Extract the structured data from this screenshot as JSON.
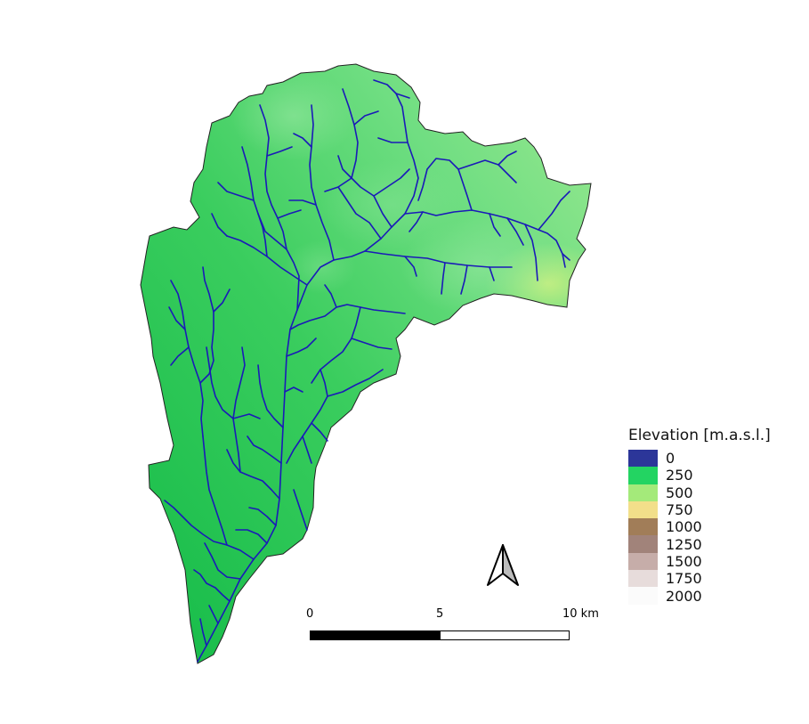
{
  "legend": {
    "title": "Elevation [m.a.s.l.]",
    "items": [
      {
        "label": "0",
        "color": "#2c3699"
      },
      {
        "label": "250",
        "color": "#23d462"
      },
      {
        "label": "500",
        "color": "#a4ea7a"
      },
      {
        "label": "750",
        "color": "#f2df8a"
      },
      {
        "label": "1000",
        "color": "#a17d58"
      },
      {
        "label": "1250",
        "color": "#a1837a"
      },
      {
        "label": "1500",
        "color": "#c6ada9"
      },
      {
        "label": "1750",
        "color": "#e7dcdb"
      },
      {
        "label": "2000",
        "color": "#fbfbfb"
      }
    ]
  },
  "scalebar": {
    "label_0": "0",
    "label_5": "5",
    "label_10": "10 km"
  },
  "colors": {
    "river": "#1a1ab8",
    "basin_outline": "#222222",
    "low_elevation": "#19c24f",
    "mid_elevation": "#6ede82",
    "high_elevation": "#b5ec77"
  },
  "north_arrow": "north-arrow-icon"
}
